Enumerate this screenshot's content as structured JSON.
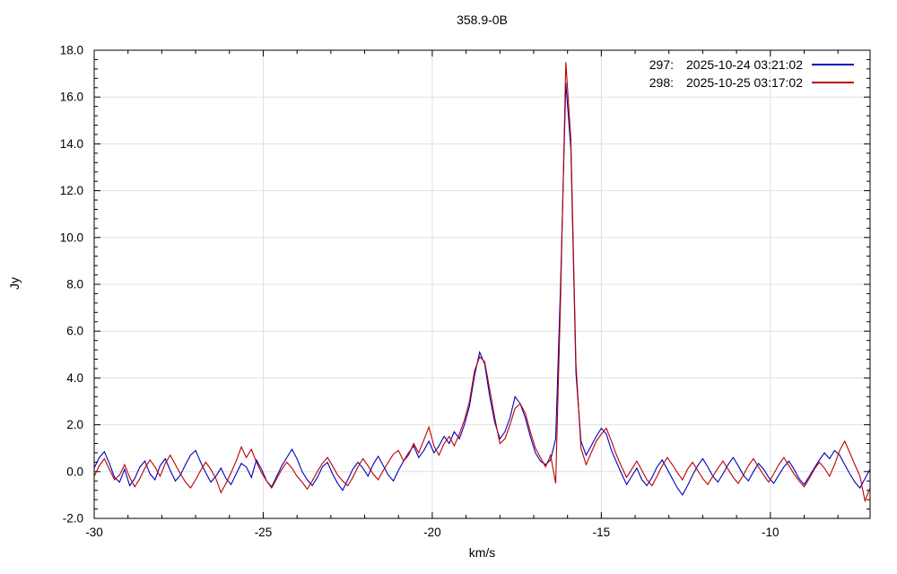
{
  "title": "358.9-0B",
  "colors": {
    "background": "#ffffff",
    "axis": "#000000",
    "grid": "#e0e0e0",
    "series1": "#0000bb",
    "series2": "#bb0000"
  },
  "legend": {
    "position": "top-right",
    "rows": [
      {
        "scan": "297:",
        "datetime": "2025-10-24 03:21:02"
      },
      {
        "scan": "298:",
        "datetime": "2025-10-25 03:17:02"
      }
    ]
  },
  "chart_data": {
    "type": "line",
    "title": "358.9-0B",
    "xlabel": "km/s",
    "ylabel": "Jy",
    "xlim": [
      -30,
      -7.05
    ],
    "ylim": [
      -2.0,
      18.0
    ],
    "grid": true,
    "legend_position": "top-right",
    "x_ticks_major": [
      -30,
      -25,
      -20,
      -15,
      -10
    ],
    "x_tick_labels": [
      "-30",
      "-25",
      "-20",
      "-15",
      "-10"
    ],
    "x_minor_step": 1,
    "y_ticks_major": [
      -2,
      0,
      2,
      4,
      6,
      8,
      10,
      12,
      14,
      16,
      18
    ],
    "y_tick_labels": [
      "-2.0",
      "0.0",
      "2.0",
      "4.0",
      "6.0",
      "8.0",
      "10.0",
      "12.0",
      "14.0",
      "16.0",
      "18.0"
    ],
    "y_minor_step": 0.4,
    "x_start": -30,
    "x_step": 0.15,
    "features": {
      "main_peak": {
        "velocity_kms": -16.05,
        "peak_jy_297": 16.6,
        "peak_jy_298": 17.5
      },
      "secondary_peak": {
        "velocity_kms": -18.6,
        "peak_jy_297": 5.1,
        "peak_jy_298": 4.9
      },
      "tertiary_peak": {
        "velocity_kms": -17.55,
        "peak_jy_297": 3.2,
        "peak_jy_298": 2.9
      }
    },
    "series": [
      {
        "name": "297:   2025-10-24 03:21:02",
        "scan": "297",
        "timestamp": "2025-10-24 03:21:02",
        "color": "#0000bb",
        "values": [
          0.15,
          0.6,
          0.85,
          0.35,
          -0.25,
          -0.45,
          0.1,
          -0.6,
          -0.3,
          0.2,
          0.45,
          -0.1,
          -0.35,
          0.25,
          0.55,
          0.05,
          -0.4,
          -0.15,
          0.3,
          0.7,
          0.9,
          0.4,
          -0.05,
          -0.45,
          -0.2,
          0.15,
          -0.3,
          -0.55,
          -0.1,
          0.35,
          0.2,
          -0.25,
          0.5,
          0.1,
          -0.4,
          -0.65,
          -0.2,
          0.25,
          0.6,
          0.95,
          0.55,
          0.0,
          -0.35,
          -0.6,
          -0.25,
          0.2,
          0.4,
          -0.1,
          -0.5,
          -0.8,
          -0.35,
          0.1,
          0.4,
          0.15,
          -0.2,
          0.3,
          0.65,
          0.25,
          -0.15,
          -0.4,
          0.05,
          0.45,
          0.8,
          1.1,
          0.6,
          0.9,
          1.3,
          0.8,
          1.1,
          1.5,
          1.2,
          1.7,
          1.4,
          2.0,
          2.8,
          4.1,
          5.1,
          4.6,
          3.2,
          2.1,
          1.4,
          1.7,
          2.3,
          3.2,
          2.9,
          2.3,
          1.5,
          0.8,
          0.45,
          0.3,
          0.5,
          1.4,
          8.2,
          16.6,
          13.8,
          4.2,
          1.3,
          0.7,
          1.1,
          1.5,
          1.85,
          1.6,
          0.9,
          0.4,
          -0.1,
          -0.55,
          -0.2,
          0.15,
          -0.35,
          -0.6,
          -0.25,
          0.2,
          0.5,
          0.1,
          -0.3,
          -0.7,
          -1.0,
          -0.6,
          -0.15,
          0.25,
          0.55,
          0.2,
          -0.2,
          -0.45,
          -0.1,
          0.3,
          0.6,
          0.25,
          -0.15,
          -0.4,
          0.0,
          0.35,
          0.1,
          -0.25,
          -0.5,
          -0.15,
          0.2,
          0.45,
          0.1,
          -0.3,
          -0.55,
          -0.2,
          0.15,
          0.5,
          0.8,
          0.55,
          0.9,
          0.7,
          0.3,
          -0.1,
          -0.45,
          -0.7,
          -0.3,
          0.1
        ]
      },
      {
        "name": "298:   2025-10-25 03:17:02",
        "scan": "298",
        "timestamp": "2025-10-25 03:17:02",
        "color": "#bb0000",
        "values": [
          -0.2,
          0.25,
          0.55,
          0.1,
          -0.35,
          -0.15,
          0.3,
          -0.25,
          -0.65,
          -0.3,
          0.15,
          0.5,
          0.2,
          -0.2,
          0.35,
          0.7,
          0.3,
          -0.1,
          -0.45,
          -0.7,
          -0.35,
          0.05,
          0.4,
          0.1,
          -0.3,
          -0.9,
          -0.5,
          -0.05,
          0.45,
          1.05,
          0.6,
          0.95,
          0.4,
          -0.05,
          -0.4,
          -0.7,
          -0.3,
          0.1,
          0.4,
          0.15,
          -0.2,
          -0.45,
          -0.75,
          -0.4,
          0.0,
          0.35,
          0.6,
          0.25,
          -0.15,
          -0.4,
          -0.6,
          -0.25,
          0.2,
          0.55,
          0.25,
          -0.1,
          -0.35,
          0.05,
          0.4,
          0.75,
          0.9,
          0.45,
          0.7,
          1.2,
          0.8,
          1.35,
          1.9,
          1.1,
          0.7,
          1.2,
          1.5,
          1.1,
          1.6,
          2.2,
          3.0,
          4.3,
          4.9,
          4.7,
          3.5,
          2.3,
          1.2,
          1.4,
          2.0,
          2.7,
          2.9,
          2.5,
          1.7,
          1.0,
          0.6,
          0.2,
          0.7,
          -0.5,
          7.6,
          17.5,
          14.2,
          4.6,
          1.0,
          0.3,
          0.8,
          1.3,
          1.6,
          1.85,
          1.3,
          0.7,
          0.2,
          -0.25,
          0.1,
          0.45,
          0.05,
          -0.35,
          -0.6,
          -0.2,
          0.25,
          0.6,
          0.3,
          -0.05,
          -0.35,
          0.1,
          0.4,
          0.05,
          -0.3,
          -0.55,
          -0.2,
          0.15,
          0.45,
          0.1,
          -0.25,
          -0.5,
          -0.15,
          0.25,
          0.55,
          0.2,
          -0.15,
          -0.45,
          -0.1,
          0.3,
          0.6,
          0.25,
          -0.1,
          -0.4,
          -0.65,
          -0.3,
          0.1,
          0.4,
          0.15,
          -0.2,
          0.3,
          0.9,
          1.3,
          0.8,
          0.3,
          -0.2,
          -1.25,
          -0.7
        ]
      }
    ]
  }
}
